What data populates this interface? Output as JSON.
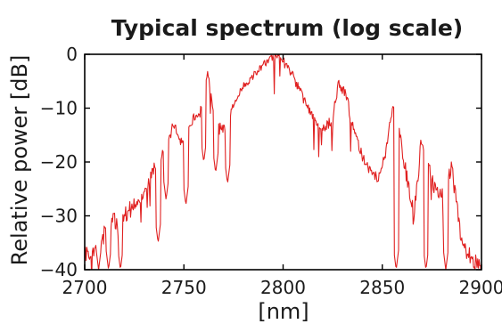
{
  "chart_data": {
    "type": "line",
    "title": "Typical spectrum (log scale)",
    "xlabel": "[nm]",
    "ylabel": "Relative power [dB]",
    "xlim": [
      2700,
      2900
    ],
    "ylim": [
      -40,
      0
    ],
    "xticks": [
      2700,
      2750,
      2800,
      2850,
      2900
    ],
    "yticks": [
      0,
      -10,
      -20,
      -30,
      -40
    ],
    "xtick_labels": [
      "2700",
      "2750",
      "2800",
      "2850",
      "2900"
    ],
    "ytick_labels": [
      "0",
      "−10",
      "−20",
      "−30",
      "−40"
    ],
    "grid": false,
    "series": [
      {
        "color": "#e02020",
        "envelope": {
          "x": [
            2700,
            2705,
            2710,
            2715,
            2720,
            2725,
            2730,
            2735,
            2740,
            2745,
            2750,
            2755,
            2760,
            2762,
            2765,
            2770,
            2775,
            2780,
            2785,
            2790,
            2795,
            2798,
            2800,
            2805,
            2810,
            2815,
            2820,
            2825,
            2828,
            2832,
            2836,
            2840,
            2845,
            2848,
            2852,
            2855,
            2858,
            2862,
            2866,
            2870,
            2875,
            2880,
            2885,
            2890,
            2895,
            2900
          ],
          "y": [
            -37,
            -36,
            -32,
            -31,
            -30,
            -28,
            -26,
            -21,
            -18,
            -13,
            -17,
            -12,
            -10,
            -3,
            -12,
            -14,
            -9,
            -6,
            -4,
            -2,
            -0.5,
            0,
            -1,
            -4,
            -8,
            -12,
            -14,
            -12,
            -5,
            -8,
            -15,
            -19,
            -22,
            -23,
            -18,
            -10,
            -13,
            -22,
            -30,
            -15,
            -24,
            -26,
            -21,
            -35,
            -38,
            -40
          ]
        },
        "dips": [
          {
            "x": 2707,
            "y": -40
          },
          {
            "x": 2712,
            "y": -40
          },
          {
            "x": 2718,
            "y": -40
          },
          {
            "x": 2737,
            "y": -35
          },
          {
            "x": 2741,
            "y": -27
          },
          {
            "x": 2751,
            "y": -28
          },
          {
            "x": 2760,
            "y": -20
          },
          {
            "x": 2766,
            "y": -22
          },
          {
            "x": 2772,
            "y": -24
          },
          {
            "x": 2857,
            "y": -40
          },
          {
            "x": 2872,
            "y": -40
          },
          {
            "x": 2882,
            "y": -40
          }
        ]
      }
    ]
  }
}
